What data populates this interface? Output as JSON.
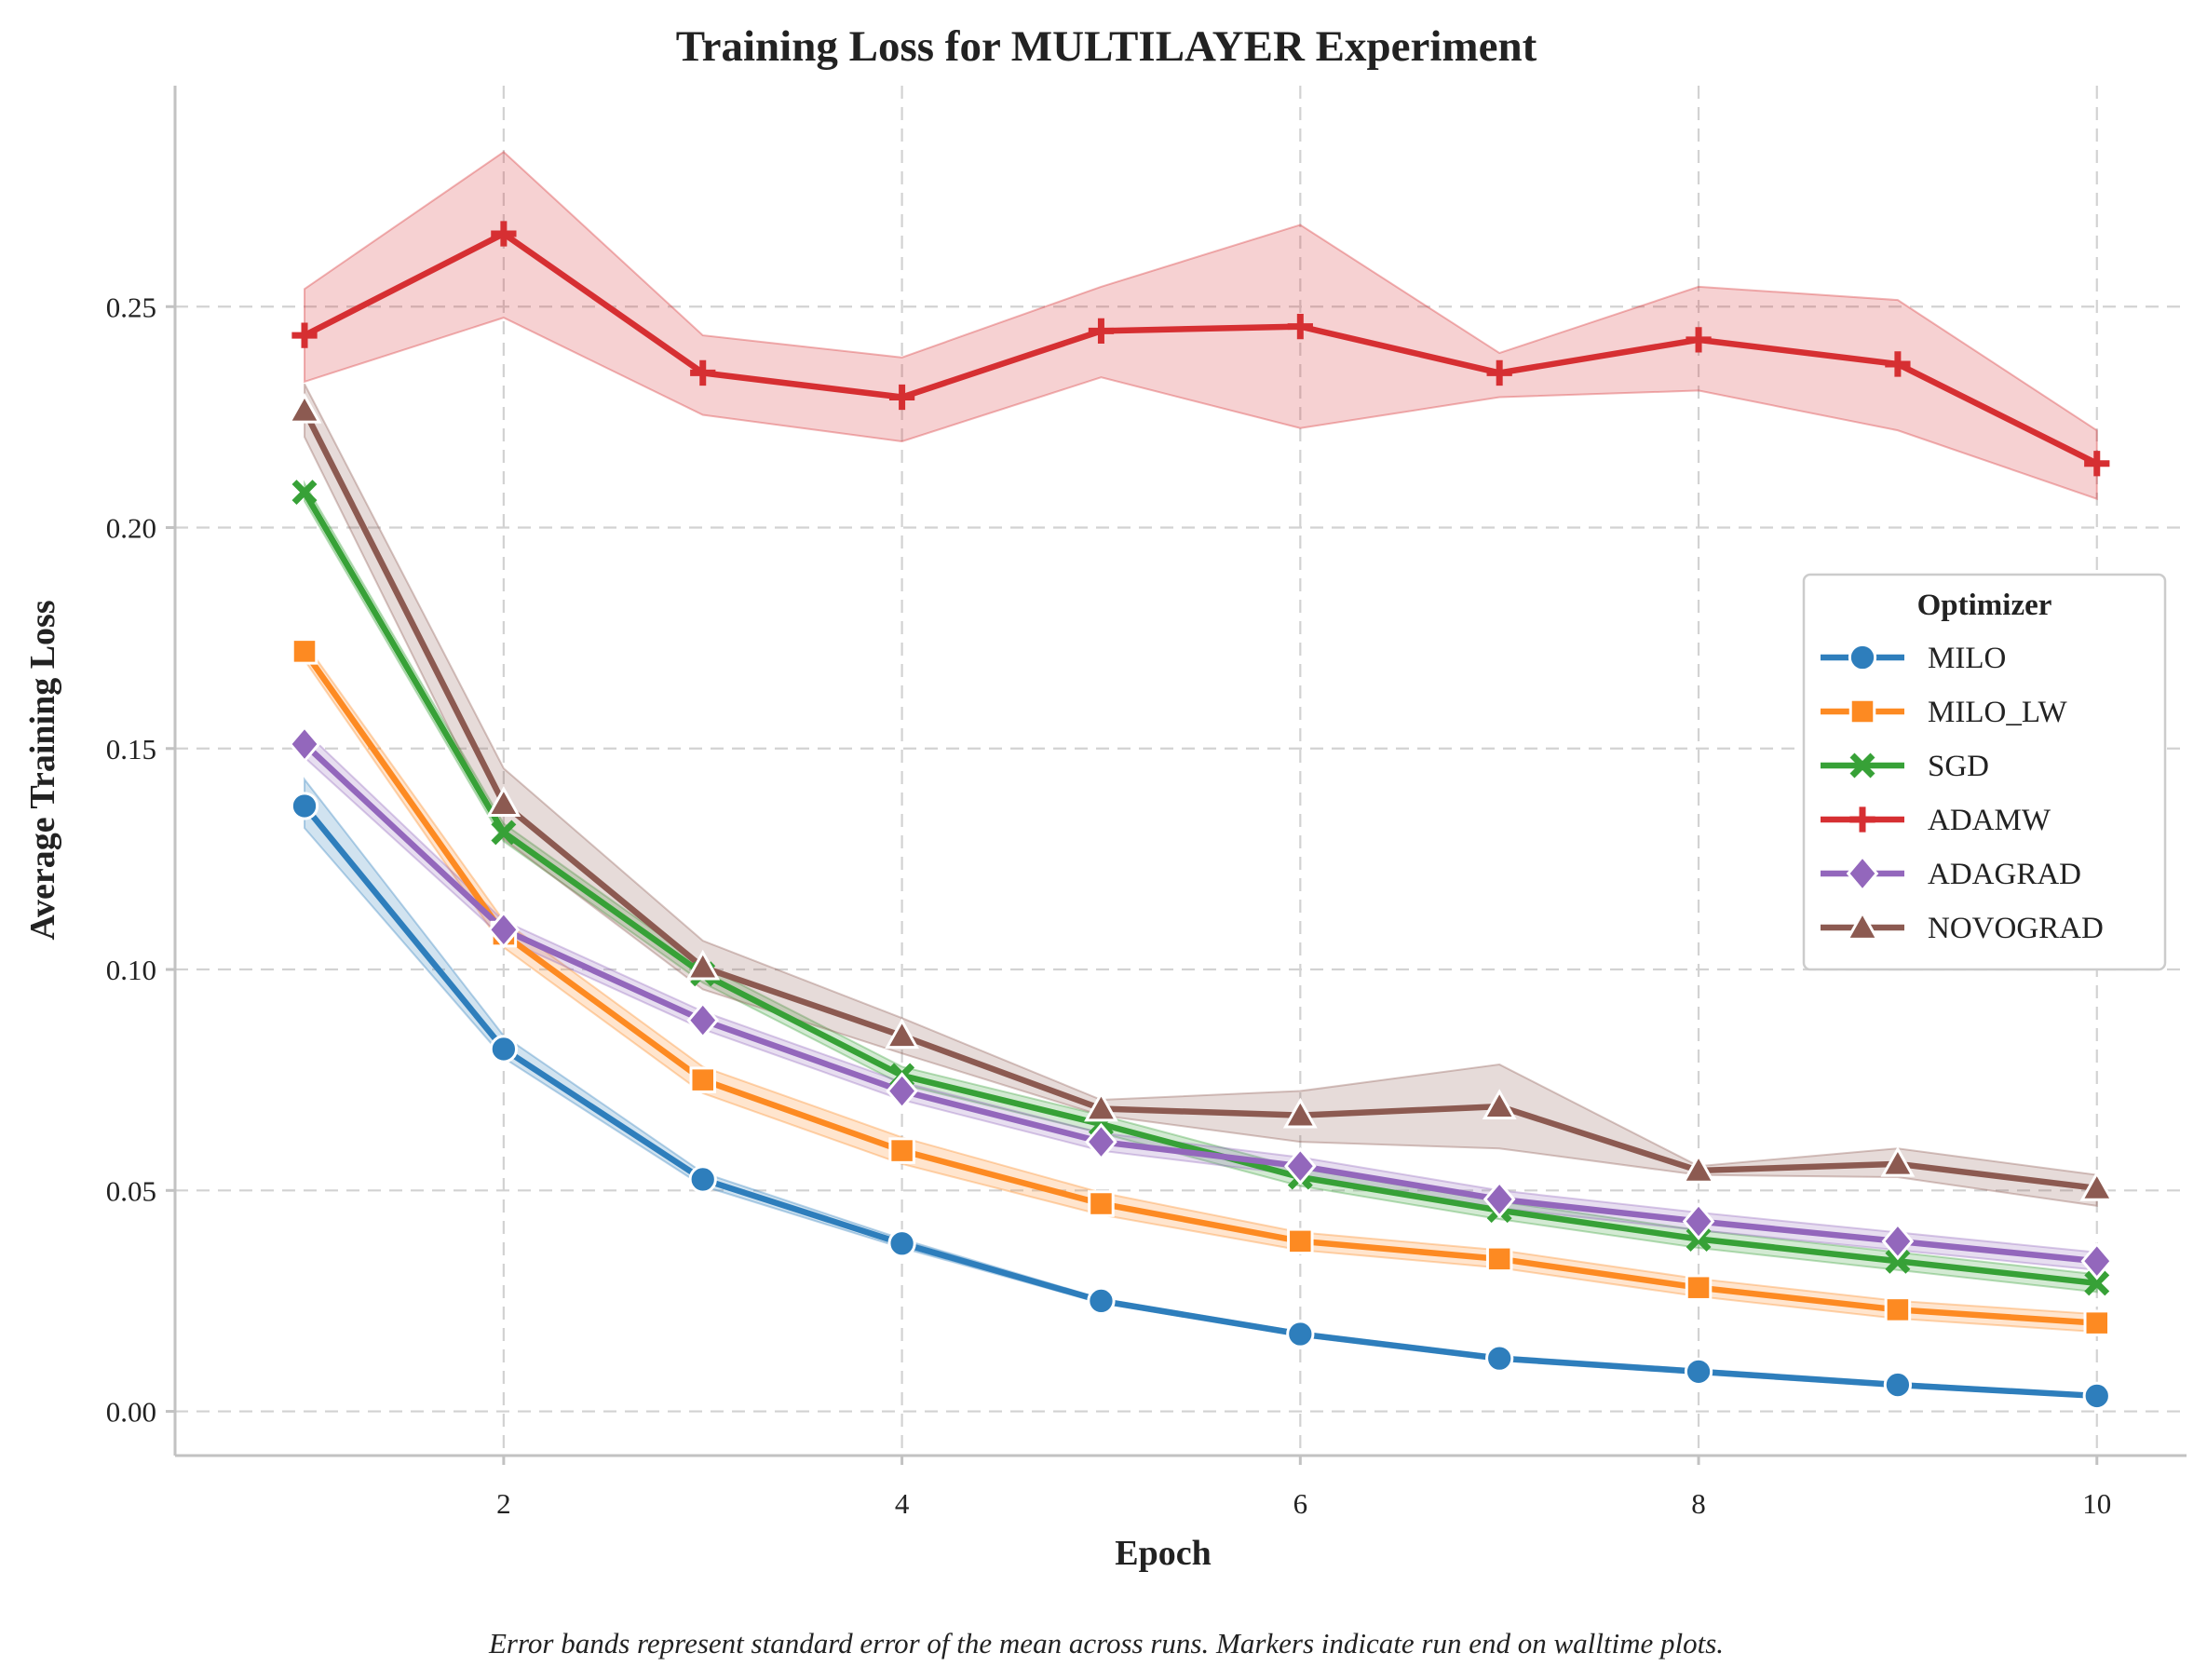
{
  "chart_data": {
    "type": "line",
    "title": "Training Loss for MULTILAYER Experiment",
    "xlabel": "Epoch",
    "ylabel": "Average Training Loss",
    "x": [
      1,
      2,
      3,
      4,
      5,
      6,
      7,
      8,
      9,
      10
    ],
    "xlim": [
      0.35,
      10.45
    ],
    "ylim": [
      -0.01,
      0.3
    ],
    "xticks": [
      2,
      4,
      6,
      8,
      10
    ],
    "xtick_labels": [
      "2",
      "4",
      "6",
      "8",
      "10"
    ],
    "yticks": [
      0.0,
      0.05,
      0.1,
      0.15,
      0.2,
      0.25
    ],
    "ytick_labels": [
      "0.00",
      "0.05",
      "0.10",
      "0.15",
      "0.20",
      "0.25"
    ],
    "grid": true,
    "legend": {
      "title": "Optimizer",
      "position": "right"
    },
    "caption": "Error bands represent standard error of the mean across runs. Markers indicate run end on walltime plots.",
    "series": [
      {
        "name": "MILO",
        "color": "#2e7ebc",
        "marker": "circle",
        "values": [
          0.137,
          0.082,
          0.0525,
          0.038,
          0.025,
          0.0175,
          0.012,
          0.009,
          0.006,
          0.0035
        ],
        "lower": [
          0.132,
          0.08,
          0.051,
          0.037,
          0.0245,
          0.017,
          0.0115,
          0.0085,
          0.0055,
          0.0032
        ],
        "upper": [
          0.143,
          0.085,
          0.054,
          0.039,
          0.0255,
          0.018,
          0.0125,
          0.0095,
          0.0065,
          0.0038
        ]
      },
      {
        "name": "MILO_LW",
        "color": "#fd8a22",
        "marker": "square",
        "values": [
          0.172,
          0.108,
          0.075,
          0.059,
          0.047,
          0.0385,
          0.0345,
          0.028,
          0.023,
          0.02
        ],
        "lower": [
          0.17,
          0.105,
          0.072,
          0.056,
          0.0445,
          0.0365,
          0.0325,
          0.026,
          0.021,
          0.018
        ],
        "upper": [
          0.174,
          0.111,
          0.078,
          0.062,
          0.0495,
          0.0405,
          0.0365,
          0.03,
          0.025,
          0.022
        ]
      },
      {
        "name": "SGD",
        "color": "#37a137",
        "marker": "x",
        "values": [
          0.208,
          0.131,
          0.099,
          0.076,
          0.065,
          0.053,
          0.0455,
          0.039,
          0.034,
          0.029
        ],
        "lower": [
          0.206,
          0.129,
          0.097,
          0.074,
          0.063,
          0.051,
          0.0435,
          0.037,
          0.032,
          0.027
        ],
        "upper": [
          0.21,
          0.133,
          0.101,
          0.078,
          0.067,
          0.055,
          0.0475,
          0.041,
          0.036,
          0.031
        ]
      },
      {
        "name": "ADAMW",
        "color": "#d62f32",
        "marker": "plus",
        "values": [
          0.2435,
          0.2665,
          0.235,
          0.2295,
          0.2445,
          0.2455,
          0.235,
          0.2425,
          0.237,
          0.2145
        ],
        "lower": [
          0.233,
          0.2475,
          0.2255,
          0.2195,
          0.234,
          0.2225,
          0.2295,
          0.231,
          0.222,
          0.2065
        ],
        "upper": [
          0.254,
          0.285,
          0.2435,
          0.2385,
          0.2545,
          0.2685,
          0.2395,
          0.2545,
          0.2515,
          0.222
        ]
      },
      {
        "name": "ADAGRAD",
        "color": "#9367bc",
        "marker": "diamond",
        "values": [
          0.151,
          0.109,
          0.0885,
          0.0725,
          0.061,
          0.0555,
          0.048,
          0.043,
          0.0385,
          0.034
        ],
        "lower": [
          0.148,
          0.107,
          0.0865,
          0.0705,
          0.059,
          0.0535,
          0.046,
          0.041,
          0.0365,
          0.032
        ],
        "upper": [
          0.154,
          0.111,
          0.0905,
          0.0745,
          0.063,
          0.0575,
          0.05,
          0.045,
          0.0405,
          0.036
        ]
      },
      {
        "name": "NOVOGRAD",
        "color": "#8c5a51",
        "marker": "triangle",
        "values": [
          0.2265,
          0.1375,
          0.1005,
          0.085,
          0.0685,
          0.067,
          0.069,
          0.0545,
          0.056,
          0.0505
        ],
        "lower": [
          0.2205,
          0.1295,
          0.0955,
          0.081,
          0.067,
          0.061,
          0.0595,
          0.0535,
          0.053,
          0.0465
        ],
        "upper": [
          0.2325,
          0.1455,
          0.1065,
          0.089,
          0.0705,
          0.0725,
          0.0785,
          0.0555,
          0.0595,
          0.0535
        ]
      }
    ]
  }
}
